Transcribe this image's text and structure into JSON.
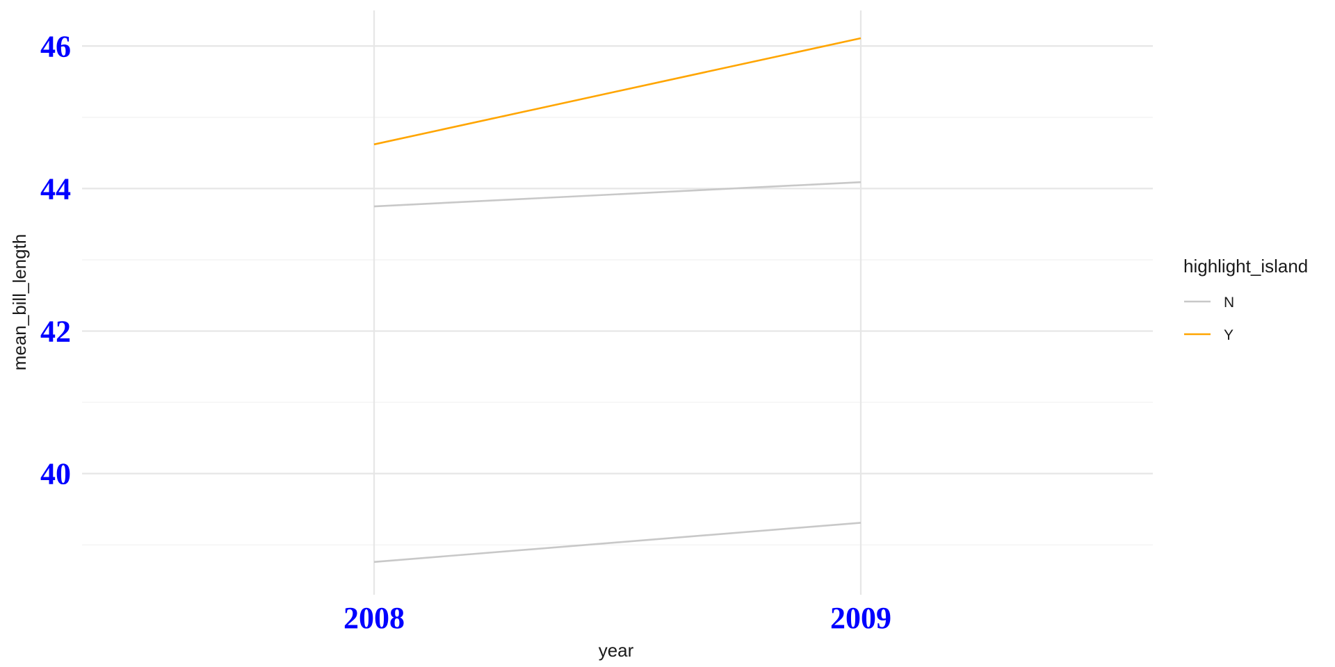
{
  "chart_data": {
    "type": "line",
    "title": "",
    "xlabel": "year",
    "ylabel": "mean_bill_length",
    "x": [
      2008,
      2009
    ],
    "xlim": [
      2007.4,
      2009.6
    ],
    "ylim": [
      38.3,
      46.5
    ],
    "y_ticks": [
      40,
      42,
      44,
      46
    ],
    "y_minor_ticks": [
      39,
      41,
      43,
      45
    ],
    "x_ticks": [
      2008,
      2009
    ],
    "grid": true,
    "legend": {
      "title": "highlight_island",
      "placement": "right",
      "entries": [
        {
          "label": "N",
          "color": "#c8c8c8"
        },
        {
          "label": "Y",
          "color": "#ffa500"
        }
      ]
    },
    "series": [
      {
        "group": "N",
        "color": "#c8c8c8",
        "values": [
          43.75,
          44.09
        ]
      },
      {
        "group": "N",
        "color": "#c8c8c8",
        "values": [
          38.76,
          39.31
        ]
      },
      {
        "group": "Y",
        "color": "#ffa500",
        "values": [
          44.62,
          46.11
        ]
      }
    ]
  }
}
